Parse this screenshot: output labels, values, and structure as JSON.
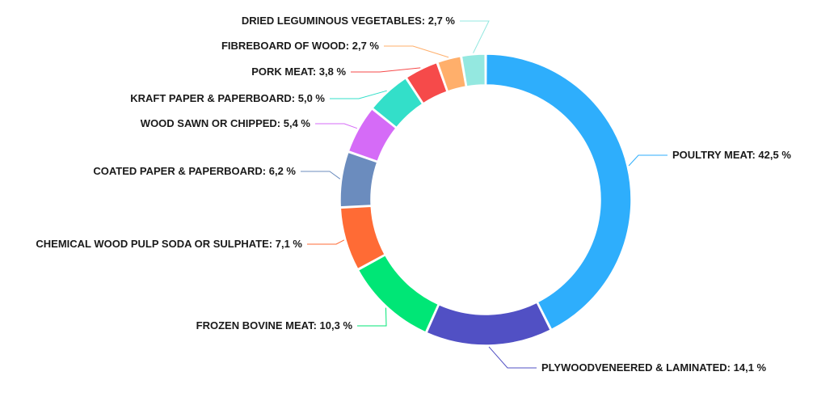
{
  "chart_data": {
    "type": "pie",
    "variant": "donut",
    "title": "",
    "legend": "none",
    "slices": [
      {
        "label": "POULTRY MEAT",
        "value": 42.5,
        "display": "POULTRY MEAT: 42,5 %",
        "color": "#2eaefc"
      },
      {
        "label": "PLYWOODVENEERED & LAMINATED",
        "value": 14.1,
        "display": "PLYWOODVENEERED & LAMINATED: 14,1 %",
        "color": "#5150c4"
      },
      {
        "label": "FROZEN BOVINE MEAT",
        "value": 10.3,
        "display": "FROZEN BOVINE MEAT: 10,3 %",
        "color": "#00e676"
      },
      {
        "label": "CHEMICAL WOOD PULP SODA OR SULPHATE",
        "value": 7.1,
        "display": "CHEMICAL WOOD PULP SODA OR SULPHATE: 7,1 %",
        "color": "#ff6b35"
      },
      {
        "label": "COATED PAPER & PAPERBOARD",
        "value": 6.2,
        "display": "COATED PAPER & PAPERBOARD: 6,2 %",
        "color": "#6b8cbe"
      },
      {
        "label": "WOOD SAWN OR CHIPPED",
        "value": 5.4,
        "display": "WOOD SAWN OR CHIPPED: 5,4 %",
        "color": "#d56bf7"
      },
      {
        "label": "KRAFT PAPER & PAPERBOARD",
        "value": 5.0,
        "display": "KRAFT PAPER & PAPERBOARD: 5,0 %",
        "color": "#33dfc9"
      },
      {
        "label": "PORK MEAT",
        "value": 3.8,
        "display": "PORK MEAT: 3,8 %",
        "color": "#f64a4a"
      },
      {
        "label": "FIBREBOARD OF WOOD",
        "value": 2.7,
        "display": "FIBREBOARD OF WOOD: 2,7 %",
        "color": "#ffaf6b"
      },
      {
        "label": "DRIED LEGUMINOUS VEGETABLES",
        "value": 2.7,
        "display": "DRIED LEGUMINOUS VEGETABLES: 2,7 %",
        "color": "#94e8e0"
      }
    ]
  }
}
